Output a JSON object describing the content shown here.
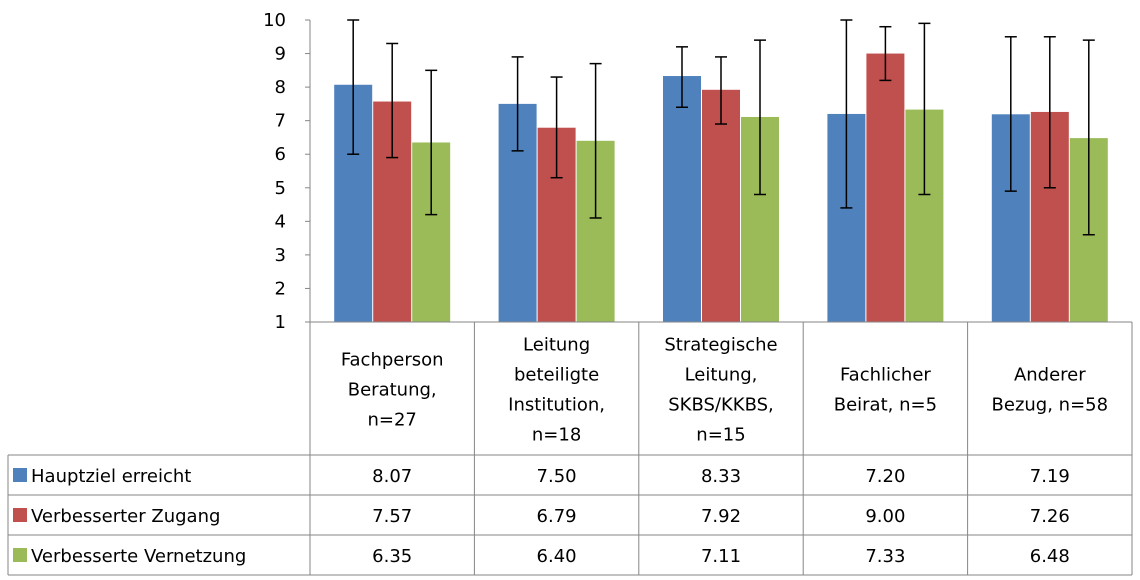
{
  "chart_data": {
    "type": "bar",
    "categories": [
      [
        "Fachperson",
        "Beratung,",
        "n=27"
      ],
      [
        "Leitung",
        "beteiligte",
        "Institution,",
        "n=18"
      ],
      [
        "Strategische",
        "Leitung,",
        "SKBS/KKBS,",
        "n=15"
      ],
      [
        "Fachlicher",
        "Beirat, n=5"
      ],
      [
        "Anderer",
        "Bezug, n=58"
      ]
    ],
    "series": [
      {
        "name": "Hauptziel erreicht",
        "color": "#4F81BD",
        "values": [
          8.07,
          7.5,
          8.33,
          7.2,
          7.19
        ],
        "value_labels": [
          "8.07",
          "7.50",
          "8.33",
          "7.20",
          "7.19"
        ],
        "error_low": [
          6.0,
          6.1,
          7.4,
          4.4,
          4.9
        ],
        "error_high": [
          10.0,
          8.9,
          9.2,
          10.0,
          9.5
        ]
      },
      {
        "name": "Verbesserter Zugang",
        "color": "#C0504D",
        "values": [
          7.57,
          6.79,
          7.92,
          9.0,
          7.26
        ],
        "value_labels": [
          "7.57",
          "6.79",
          "7.92",
          "9.00",
          "7.26"
        ],
        "error_low": [
          5.9,
          5.3,
          6.9,
          8.2,
          5.0
        ],
        "error_high": [
          9.3,
          8.3,
          8.9,
          9.8,
          9.5
        ]
      },
      {
        "name": "Verbesserte Vernetzung",
        "color": "#9BBB59",
        "values": [
          6.35,
          6.4,
          7.11,
          7.33,
          6.48
        ],
        "value_labels": [
          "6.35",
          "6.40",
          "7.11",
          "7.33",
          "6.48"
        ],
        "error_low": [
          4.2,
          4.1,
          4.8,
          4.8,
          3.6
        ],
        "error_high": [
          8.5,
          8.7,
          9.4,
          9.9,
          9.4
        ]
      }
    ],
    "ylim": [
      1,
      10
    ],
    "yticks": [
      1,
      2,
      3,
      4,
      5,
      6,
      7,
      8,
      9,
      10
    ],
    "grid": false,
    "legend": "data-table",
    "error_bars": true
  }
}
